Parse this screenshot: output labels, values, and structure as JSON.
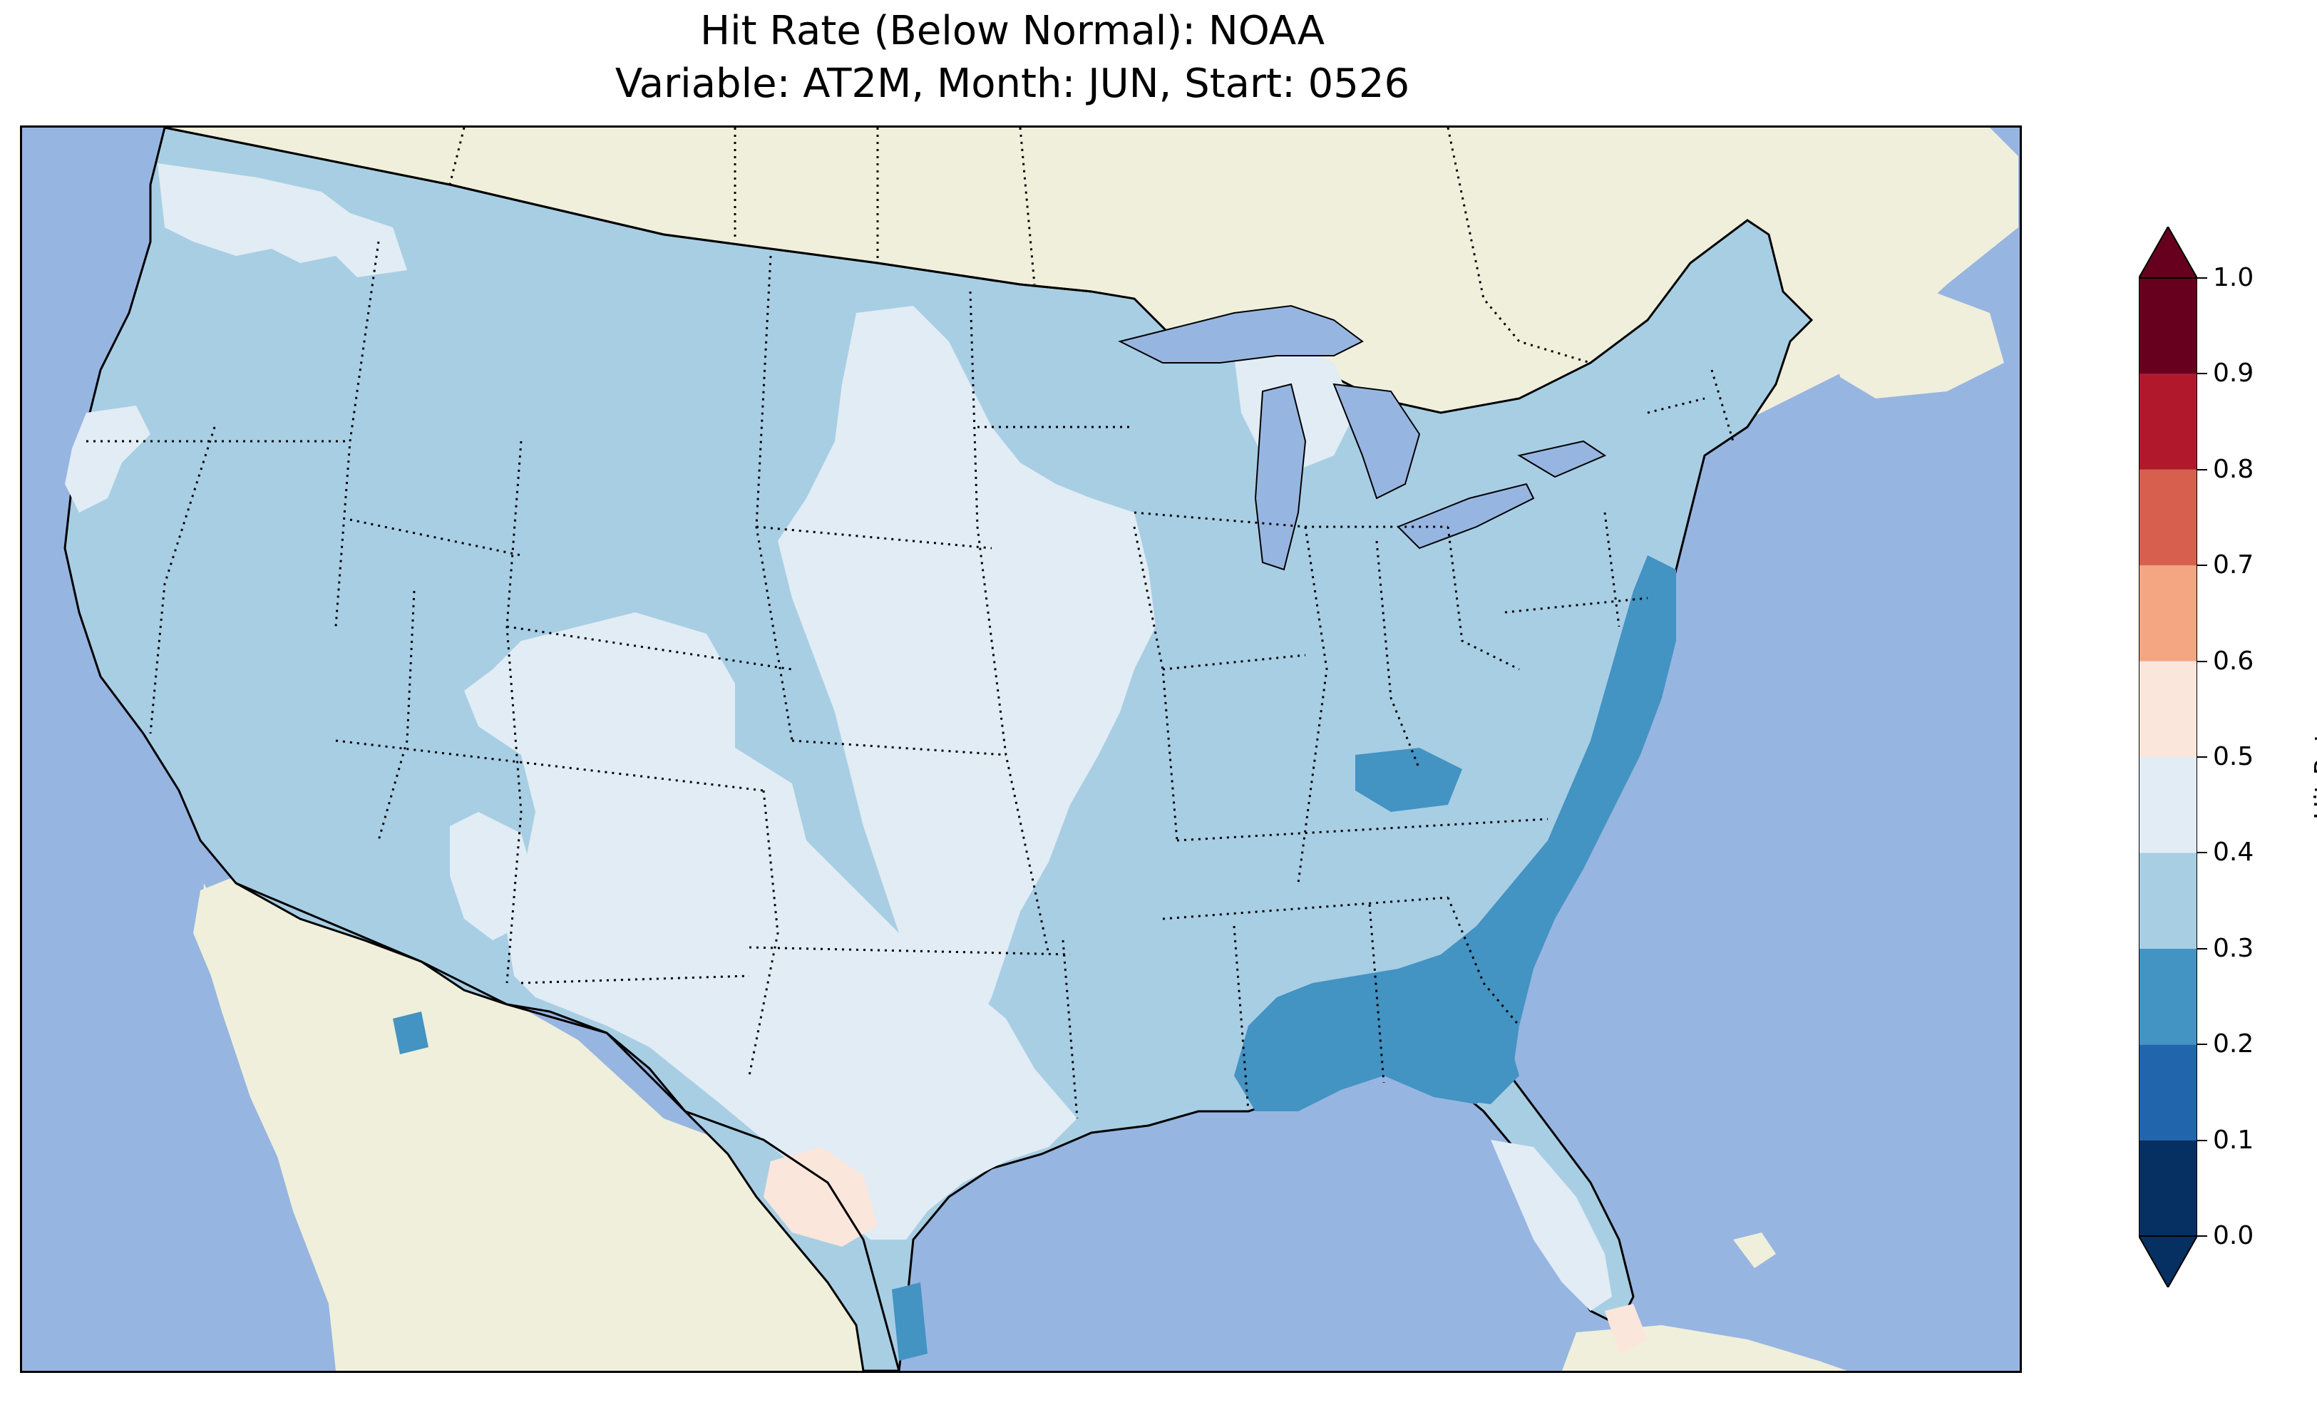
{
  "title": {
    "line1": "Hit Rate (Below Normal): NOAA",
    "line2": "Variable: AT2M, Month: JUN, Start: 0526"
  },
  "colors": {
    "ocean": "#97b5e1",
    "land": "#efefdb",
    "lake": "#97b5e1",
    "border": "#000000"
  },
  "colorbar": {
    "label": "Hit Rate",
    "ticks": [
      "0.0",
      "0.1",
      "0.2",
      "0.3",
      "0.4",
      "0.5",
      "0.6",
      "0.7",
      "0.8",
      "0.9",
      "1.0"
    ],
    "bins": [
      {
        "range": [
          0.0,
          0.1
        ],
        "color": "#053061"
      },
      {
        "range": [
          0.1,
          0.2
        ],
        "color": "#2166ac"
      },
      {
        "range": [
          0.2,
          0.3
        ],
        "color": "#4393c3"
      },
      {
        "range": [
          0.3,
          0.4
        ],
        "color": "#a8cee4"
      },
      {
        "range": [
          0.4,
          0.5
        ],
        "color": "#e1ecf4"
      },
      {
        "range": [
          0.5,
          0.6
        ],
        "color": "#fbe6dc"
      },
      {
        "range": [
          0.6,
          0.7
        ],
        "color": "#f4a582"
      },
      {
        "range": [
          0.7,
          0.8
        ],
        "color": "#d6604d"
      },
      {
        "range": [
          0.8,
          0.9
        ],
        "color": "#b2182b"
      },
      {
        "range": [
          0.9,
          1.0
        ],
        "color": "#67001f"
      }
    ],
    "extend": "both"
  }
}
